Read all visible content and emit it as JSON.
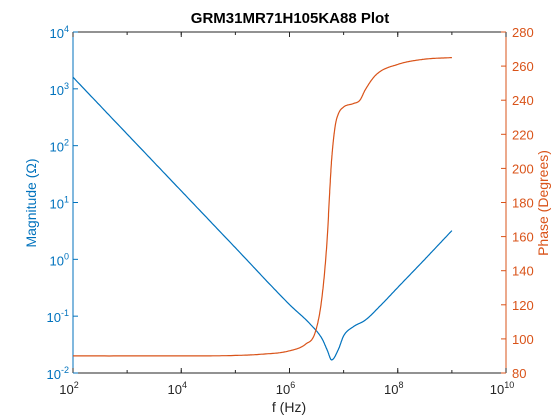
{
  "colors": {
    "magnitude": "#0072BD",
    "phase": "#D95319",
    "axis": "#262626"
  },
  "chart_data": {
    "type": "line",
    "title": "GRM31MR71H105KA88 Plot",
    "xlabel": "f (Hz)",
    "ylabel_left": "Magnitude (Ω)",
    "ylabel_right": "Phase (Degrees)",
    "xscale": "log",
    "yscale_left": "log",
    "xlim": [
      100,
      10000000000
    ],
    "ylim_left": [
      0.01,
      10000
    ],
    "ylim_right": [
      80,
      280
    ],
    "x_ticks": [
      {
        "base": "10",
        "exp": "2"
      },
      {
        "base": "10",
        "exp": "4"
      },
      {
        "base": "10",
        "exp": "6"
      },
      {
        "base": "10",
        "exp": "8"
      },
      {
        "base": "10",
        "exp": "10"
      }
    ],
    "y_ticks_left": [
      {
        "base": "10",
        "exp": "-2"
      },
      {
        "base": "10",
        "exp": "-1"
      },
      {
        "base": "10",
        "exp": "0"
      },
      {
        "base": "10",
        "exp": "1"
      },
      {
        "base": "10",
        "exp": "2"
      },
      {
        "base": "10",
        "exp": "3"
      },
      {
        "base": "10",
        "exp": "4"
      }
    ],
    "y_ticks_right": [
      "80",
      "100",
      "120",
      "140",
      "160",
      "180",
      "200",
      "220",
      "240",
      "260",
      "280"
    ],
    "grid": false,
    "series": [
      {
        "axis": "left",
        "x": [
          100,
          1000,
          10000,
          100000,
          1000000,
          2500000,
          4000000,
          5000000,
          6000000,
          8000000,
          10000000,
          15000000,
          25000000,
          50000000,
          100000000,
          300000000,
          1000000000
        ],
        "y": [
          1600,
          160,
          16,
          1.6,
          0.16,
          0.07,
          0.04,
          0.025,
          0.017,
          0.026,
          0.045,
          0.065,
          0.085,
          0.16,
          0.32,
          0.95,
          3.2
        ]
      },
      {
        "axis": "right",
        "x": [
          100,
          10000,
          100000,
          300000,
          1000000,
          2000000,
          3000000,
          4000000,
          5000000,
          5500000,
          6000000,
          7000000,
          8000000,
          10000000,
          15000000,
          20000000,
          25000000,
          40000000,
          100000000,
          300000000,
          1000000000
        ],
        "y": [
          90,
          90,
          90.3,
          91,
          93,
          97,
          104,
          125,
          160,
          185,
          205,
          225,
          232,
          236,
          238,
          240,
          246,
          255,
          261,
          264,
          265
        ]
      }
    ]
  }
}
